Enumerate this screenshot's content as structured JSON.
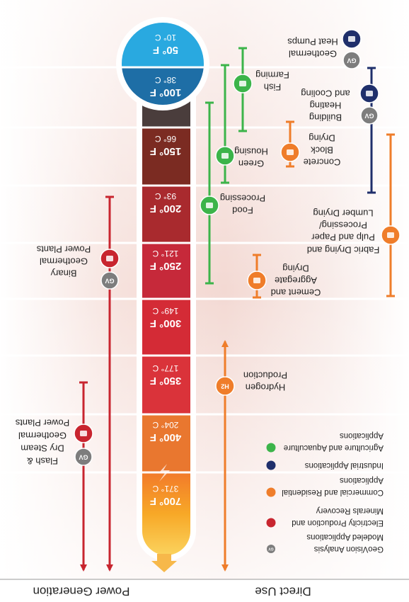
{
  "header": {
    "power_generation": "Power Generation",
    "direct_use": "Direct Use"
  },
  "gv_badge": "GV",
  "hydrogen_badge": "H2",
  "temperatures": [
    {
      "fahrenheit": "50° F",
      "celsius": "10° C"
    },
    {
      "fahrenheit": "100° F",
      "celsius": "38° C"
    },
    {
      "fahrenheit": "150° F",
      "celsius": "66° C"
    },
    {
      "fahrenheit": "200° F",
      "celsius": "93° C"
    },
    {
      "fahrenheit": "250° F",
      "celsius": "121° C"
    },
    {
      "fahrenheit": "300° F",
      "celsius": "149° C"
    },
    {
      "fahrenheit": "350° F",
      "celsius": "177° C"
    },
    {
      "fahrenheit": "400° F",
      "celsius": "204° C"
    },
    {
      "fahrenheit": "700° F",
      "celsius": "371° C"
    }
  ],
  "applications": [
    {
      "lines": [
        "Geothermal",
        "Heat Pumps"
      ]
    },
    {
      "lines": [
        "Building",
        "Heating",
        "and Cooling"
      ]
    },
    {
      "lines": [
        "Fish",
        "Farming"
      ]
    },
    {
      "lines": [
        "Green",
        "Housing"
      ]
    },
    {
      "lines": [
        "Concrete",
        "Block",
        "Drying"
      ]
    },
    {
      "lines": [
        "Food",
        "Processing"
      ]
    },
    {
      "lines": [
        "Fabric Drying and",
        "Pulp and Paper",
        "Processing/",
        "Lumber Drying"
      ]
    },
    {
      "lines": [
        "Cement and",
        "Aggregate",
        "Drying"
      ]
    },
    {
      "lines": [
        "Hydrogen",
        "Production"
      ]
    },
    {
      "lines": [
        "Binary",
        "Geothermal",
        "Power Plants"
      ]
    },
    {
      "lines": [
        "Flash &",
        "Dry Steam",
        "Geothermal",
        "Power Plants"
      ]
    }
  ],
  "legend": [
    {
      "lines": [
        "GeoVision Analysis",
        "Modeled Applications"
      ]
    },
    {
      "lines": [
        "Electricity Production and",
        "Minerals Recovery"
      ]
    },
    {
      "lines": [
        "Commercial and Residential",
        "Applications"
      ]
    },
    {
      "lines": [
        "Industrial Applications"
      ]
    },
    {
      "lines": [
        "Agriculture and Aquaculture",
        "Applications"
      ]
    }
  ]
}
